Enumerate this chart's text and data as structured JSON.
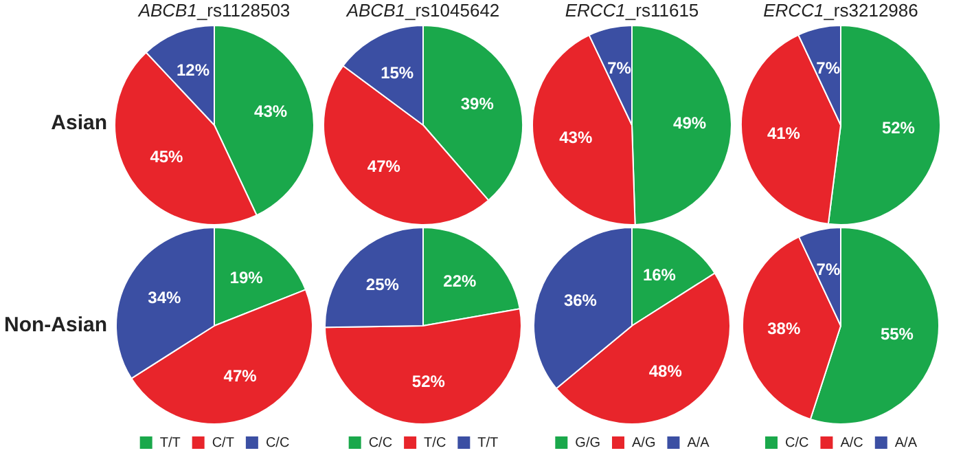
{
  "chart_data": [
    {
      "type": "pie",
      "title": "ABCB1_rs1128503",
      "ylabel": "Asian",
      "categories": [
        null,
        null,
        null
      ],
      "values": [
        43,
        45,
        12
      ],
      "value_labels": [
        "43%",
        "45%",
        "12%"
      ],
      "colors": [
        "#1aa84b",
        "#e8252b",
        "#3b4fa3"
      ],
      "legend": false
    },
    {
      "type": "pie",
      "title": "ABCB1_rs1045642",
      "categories": [
        null,
        null,
        null
      ],
      "values": [
        39,
        47,
        15
      ],
      "value_labels": [
        "39%",
        "47%",
        "15%"
      ],
      "colors": [
        "#1aa84b",
        "#e8252b",
        "#3b4fa3"
      ],
      "legend": false
    },
    {
      "type": "pie",
      "title": "ERCC1_rs11615",
      "categories": [
        null,
        null,
        null
      ],
      "values": [
        49,
        43,
        7
      ],
      "value_labels": [
        "49%",
        "43%",
        "7%"
      ],
      "colors": [
        "#1aa84b",
        "#e8252b",
        "#3b4fa3"
      ],
      "legend": false
    },
    {
      "type": "pie",
      "title": "ERCC1_rs3212986",
      "categories": [
        null,
        null,
        null
      ],
      "values": [
        52,
        41,
        7
      ],
      "value_labels": [
        "52%",
        "41%",
        "7%"
      ],
      "colors": [
        "#1aa84b",
        "#e8252b",
        "#3b4fa3"
      ],
      "legend": false
    },
    {
      "type": "pie",
      "ylabel": "Non-Asian",
      "categories": [
        "T/T",
        "C/T",
        "C/C"
      ],
      "values": [
        19,
        47,
        34
      ],
      "value_labels": [
        "19%",
        "47%",
        "34%"
      ],
      "colors": [
        "#1aa84b",
        "#e8252b",
        "#3b4fa3"
      ],
      "legend": "bottom"
    },
    {
      "type": "pie",
      "categories": [
        "C/C",
        "T/C",
        "T/T"
      ],
      "values": [
        22,
        52,
        25
      ],
      "value_labels": [
        "22%",
        "52%",
        "25%"
      ],
      "colors": [
        "#1aa84b",
        "#e8252b",
        "#3b4fa3"
      ],
      "legend": "bottom"
    },
    {
      "type": "pie",
      "categories": [
        "G/G",
        "A/G",
        "A/A"
      ],
      "values": [
        16,
        48,
        36
      ],
      "value_labels": [
        "16%",
        "48%",
        "36%"
      ],
      "colors": [
        "#1aa84b",
        "#e8252b",
        "#3b4fa3"
      ],
      "legend": "bottom"
    },
    {
      "type": "pie",
      "categories": [
        "C/C",
        "A/C",
        "A/A"
      ],
      "values": [
        55,
        38,
        7
      ],
      "value_labels": [
        "55%",
        "38%",
        "7%"
      ],
      "colors": [
        "#1aa84b",
        "#e8252b",
        "#3b4fa3"
      ],
      "legend": "bottom"
    }
  ]
}
